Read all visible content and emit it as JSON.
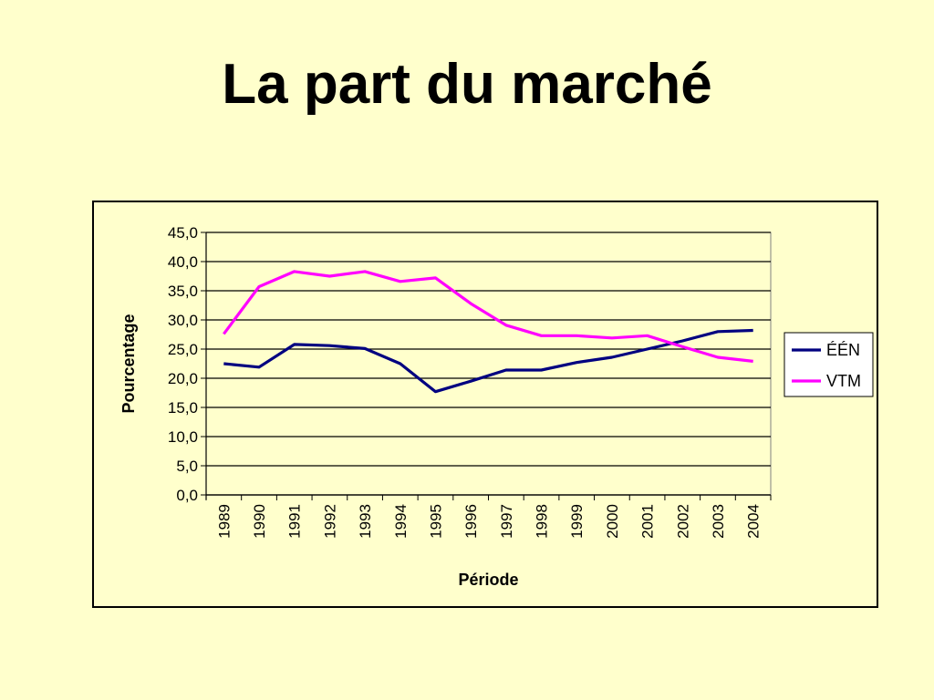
{
  "slide": {
    "title": "La part du marché"
  },
  "chart_data": {
    "type": "line",
    "xlabel": "Période",
    "ylabel": "Pourcentage",
    "categories": [
      "1989",
      "1990",
      "1991",
      "1992",
      "1993",
      "1994",
      "1995",
      "1996",
      "1997",
      "1998",
      "1999",
      "2000",
      "2001",
      "2002",
      "2003",
      "2004"
    ],
    "ylim": [
      0,
      45
    ],
    "yticks": [
      "0,0",
      "5,0",
      "10,0",
      "15,0",
      "20,0",
      "25,0",
      "30,0",
      "35,0",
      "40,0",
      "45,0"
    ],
    "grid": true,
    "legend_position": "right",
    "series": [
      {
        "name": "ÉÉN",
        "color": "#000080",
        "values": [
          22.5,
          21.9,
          25.8,
          25.6,
          25.1,
          22.5,
          17.7,
          19.5,
          21.4,
          21.4,
          22.7,
          23.6,
          25.0,
          26.4,
          28.0,
          28.2
        ]
      },
      {
        "name": "VTM",
        "color": "#FF00FF",
        "values": [
          27.6,
          35.7,
          38.3,
          37.5,
          38.3,
          36.6,
          37.2,
          32.8,
          29.1,
          27.3,
          27.3,
          26.9,
          27.3,
          25.4,
          23.6,
          22.9
        ]
      }
    ]
  }
}
